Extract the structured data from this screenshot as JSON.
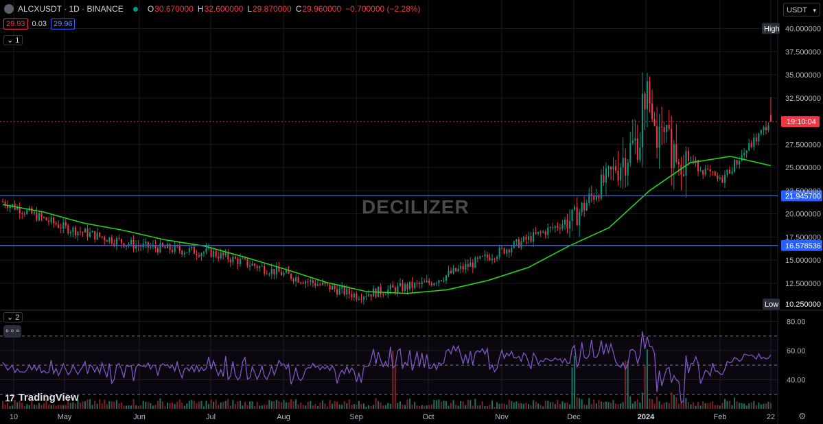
{
  "header": {
    "symbol": "ALCXUSDT · 1D · BINANCE",
    "open_label": "O",
    "open": "30.670000",
    "high_label": "H",
    "high": "32.600000",
    "low_label": "L",
    "low": "29.870000",
    "close_label": "C",
    "close": "29.960000",
    "change": "−0.700000 (−2.28%)"
  },
  "quote": {
    "bid": "29.93",
    "spread": "0.03",
    "ask": "29.96"
  },
  "pane_toggles": {
    "main": "1",
    "indicator": "2"
  },
  "more_label": "∘∘∘",
  "currency_select": "USDT",
  "brand": "TradingView",
  "watermark": "DECILIZER",
  "colors": {
    "up": "#089981",
    "down": "#f23645",
    "ma": "#22d61a",
    "level": "#2962ff",
    "rsi": "#7e57c2",
    "volume_up": "#1d6e5f",
    "volume_down": "#7b1f27"
  },
  "chart_data": [
    {
      "type": "candlestick",
      "title": "ALCXUSDT · 1D · BINANCE",
      "x_ticks": [
        "10",
        "May",
        "Jun",
        "Jul",
        "Aug",
        "Sep",
        "Oct",
        "Nov",
        "Dec",
        "2024",
        "Feb",
        "22"
      ],
      "y_ticks": [
        "40.000000",
        "37.500000",
        "35.000000",
        "32.500000",
        "27.500000",
        "25.000000",
        "22.500000",
        "20.000000",
        "17.500000",
        "15.000000",
        "12.500000"
      ],
      "ylim": [
        9.6,
        41.3
      ],
      "price_key_points": [
        {
          "t": "10",
          "close": 20.8
        },
        {
          "t": "May",
          "close": 18.5
        },
        {
          "t": "Jun",
          "close": 16.5
        },
        {
          "t": "Jul",
          "close": 15.8
        },
        {
          "t": "Aug",
          "close": 13.5
        },
        {
          "t": "Sep",
          "close": 11.2
        },
        {
          "t": "Oct",
          "close": 12.5
        },
        {
          "t": "Nov",
          "close": 16.0
        },
        {
          "t": "Dec",
          "close": 19.5
        },
        {
          "t": "2024",
          "close": 29.0
        },
        {
          "t": "Feb",
          "close": 23.5
        },
        {
          "t": "22",
          "close": 29.96
        }
      ],
      "series": [
        {
          "values": [
            21.0,
            20.2,
            19.0,
            18.2,
            17.2,
            16.5,
            15.3,
            14.0,
            12.6,
            11.6,
            11.4,
            11.8,
            12.8,
            14.2,
            16.5,
            18.5,
            22.5,
            25.5,
            26.2,
            25.2
          ]
        }
      ],
      "levels": [
        {
          "label": "21.945700",
          "value": 21.9457
        },
        {
          "label": "16.578536",
          "value": 16.578536
        }
      ],
      "markers": [
        {
          "label": "High",
          "value": "40.000000"
        },
        {
          "label": "Low",
          "value": "10.250000"
        }
      ],
      "countdown": "19:10:04",
      "grid": true
    },
    {
      "type": "line",
      "y_ticks": [
        "80.00",
        "60.00",
        "40.00"
      ],
      "ylim": [
        20,
        84
      ],
      "bands": [
        70,
        50,
        30
      ],
      "grid": true
    }
  ]
}
